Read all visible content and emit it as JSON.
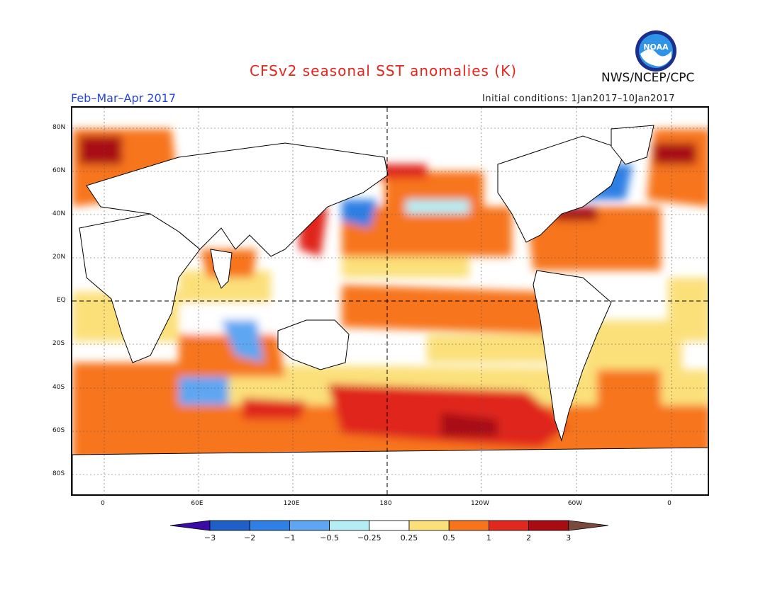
{
  "header": {
    "title": "CFSv2 seasonal SST anomalies (K)",
    "organization": "NWS/NCEP/CPC",
    "logo_text": "NOAA",
    "period": "Feb–Mar–Apr 2017",
    "initial_conditions": "Initial conditions: 1Jan2017–10Jan2017"
  },
  "colors": {
    "title": "#e8241c",
    "period": "#2646d9",
    "ocean_base": "#ffffff",
    "land_outline": "#000000"
  },
  "map": {
    "lat_labels": [
      "80N",
      "60N",
      "40N",
      "20N",
      "EQ",
      "20S",
      "40S",
      "60S",
      "80S"
    ],
    "lon_labels": [
      "0",
      "60E",
      "120E",
      "180",
      "120W",
      "60W",
      "0"
    ]
  },
  "colorbar": {
    "labels": [
      "−3",
      "−2",
      "−1",
      "−0.5",
      "−0.25",
      "0.25",
      "0.5",
      "1",
      "2",
      "3"
    ],
    "colors": [
      "#3c0aa6",
      "#1e5fc8",
      "#2f7fe4",
      "#5fa6f2",
      "#b4eef4",
      "#ffffff",
      "#fbe07a",
      "#f7741a",
      "#e0281e",
      "#a80c12",
      "#7a4b3c"
    ]
  }
}
